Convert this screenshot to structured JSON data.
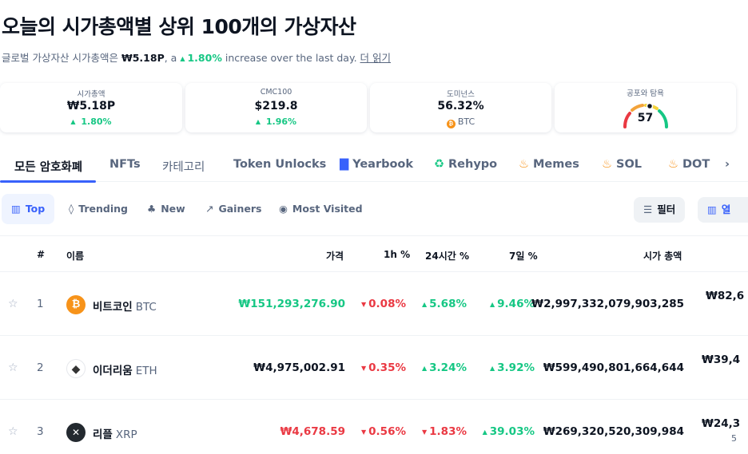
{
  "page": {
    "title": "오늘의 시가총액별 상위 100개의 가상자산",
    "subtitle_prefix": "글로벌 가상자산 시가총액은",
    "subtitle_value": "₩5.18P",
    "subtitle_mid": ", a",
    "subtitle_change": "1.80%",
    "subtitle_suffix": "increase over the last day.",
    "read_more": "더 읽기"
  },
  "stats": [
    {
      "label": "시가총액",
      "value": "₩5.18P",
      "change": "1.80%"
    },
    {
      "label": "CMC100",
      "value": "$219.8",
      "change": "1.96%"
    },
    {
      "label": "도미넌스",
      "value": "56.32%",
      "sub": "BTC"
    },
    {
      "label": "공포와 탐욕",
      "value": "57"
    }
  ],
  "tabs": [
    {
      "label": "모든 암호화폐",
      "active": true
    },
    {
      "label": "NFTs"
    },
    {
      "label": "카테고리"
    },
    {
      "label": "Token Unlocks"
    },
    {
      "label": "Yearbook",
      "icon": "book-icon"
    },
    {
      "label": "Rehypo",
      "icon": "recycle-icon"
    },
    {
      "label": "Memes",
      "icon": "fire-icon"
    },
    {
      "label": "SOL",
      "icon": "fire-icon"
    },
    {
      "label": "DOT",
      "icon": "fire-icon"
    }
  ],
  "filters": [
    {
      "label": "Top",
      "icon": "bar-chart-icon",
      "active": true
    },
    {
      "label": "Trending",
      "icon": "flame-icon"
    },
    {
      "label": "New",
      "icon": "sprout-icon"
    },
    {
      "label": "Gainers",
      "icon": "trend-up-icon"
    },
    {
      "label": "Most Visited",
      "icon": "eye-icon"
    }
  ],
  "filter_button": "필터",
  "columns_button": "열",
  "table": {
    "headers": {
      "rank": "#",
      "name": "이름",
      "price": "가격",
      "h1": "1h %",
      "h24": "24시간 %",
      "d7": "7일 %",
      "mcap": "시가 총액"
    },
    "rows": [
      {
        "rank": "1",
        "name": "비트코인",
        "symbol": "BTC",
        "price": "₩151,293,276.90",
        "price_color": "green",
        "h1": "0.08%",
        "h1_dir": "down",
        "h24": "5.68%",
        "h24_dir": "up",
        "d7": "9.46%",
        "d7_dir": "up",
        "mcap": "₩2,997,332,079,903,285",
        "vol": "₩82,6",
        "icon_color": "#f7931a",
        "icon_char": "₿"
      },
      {
        "rank": "2",
        "name": "이더리움",
        "symbol": "ETH",
        "price": "₩4,975,002.91",
        "price_color": "dark",
        "h1": "0.35%",
        "h1_dir": "down",
        "h24": "3.24%",
        "h24_dir": "up",
        "d7": "3.92%",
        "d7_dir": "up",
        "mcap": "₩599,490,801,664,644",
        "vol": "₩39,4",
        "icon_color": "#ffffff",
        "icon_char": "◆"
      },
      {
        "rank": "3",
        "name": "리플",
        "symbol": "XRP",
        "price": "₩4,678.59",
        "price_color": "red",
        "h1": "0.56%",
        "h1_dir": "down",
        "h24": "1.83%",
        "h24_dir": "down",
        "d7": "39.03%",
        "d7_dir": "up",
        "mcap": "₩269,320,520,309,984",
        "vol": "₩24,3",
        "vol2": "5",
        "icon_color": "#23292f",
        "icon_char": "✕"
      }
    ]
  },
  "colors": {
    "up": "#16c784",
    "down": "#ea3943",
    "accent": "#3861fb"
  }
}
